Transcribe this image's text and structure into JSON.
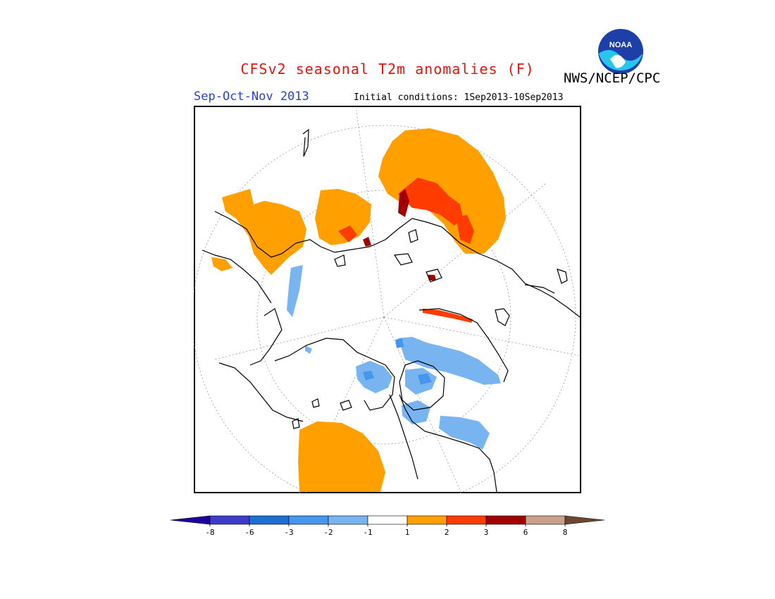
{
  "header": {
    "title": "CFSv2 seasonal T2m anomalies (F)",
    "agency": "NWS/NCEP/CPC",
    "logo_text": "NOAA",
    "season": "Sep-Oct-Nov 2013",
    "initial_conditions": "Initial conditions: 1Sep2013-10Sep2013"
  },
  "colors": {
    "title": "#e8140c",
    "season": "#2a40e0",
    "land_outline": "#000000",
    "grid_line": "#999999"
  },
  "legend": {
    "unit": "F",
    "bins": [
      {
        "color": "#1e00a0"
      },
      {
        "color": "#3c3cc8"
      },
      {
        "color": "#1e6ed2"
      },
      {
        "color": "#4696ee"
      },
      {
        "color": "#78b4f0"
      },
      {
        "color": "#ffffff"
      },
      {
        "color": "#ffa000"
      },
      {
        "color": "#ff3c00"
      },
      {
        "color": "#a00000"
      },
      {
        "color": "#c8a08c"
      },
      {
        "color": "#6e4632"
      }
    ],
    "ticks": [
      "-8",
      "-6",
      "-3",
      "-2",
      "-1",
      "1",
      "2",
      "3",
      "6",
      "8"
    ]
  },
  "map": {
    "projection": "north polar stereographic",
    "anomaly_regions": [
      {
        "name": "western Russia / Europe",
        "level": "1 to 2"
      },
      {
        "name": "Siberia",
        "level": "1 to 2"
      },
      {
        "name": "north-central Siberia",
        "level": "2 to 3"
      },
      {
        "name": "Taymyr coast",
        "level": "3 to 6"
      },
      {
        "name": "Alaska north coast",
        "level": "2 to 3"
      },
      {
        "name": "southwestern North America",
        "level": "1 to 2"
      },
      {
        "name": "Canadian Arctic Archipelago",
        "level": "-2 to -1"
      },
      {
        "name": "Hudson Bay region",
        "level": "-2 to -1"
      },
      {
        "name": "Greenland east coast",
        "level": "-2 to -1"
      }
    ]
  }
}
